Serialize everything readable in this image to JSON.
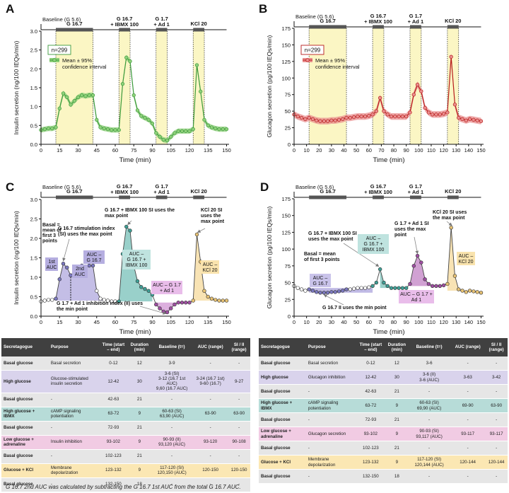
{
  "colors": {
    "insulin": "#3c9a3c",
    "insulin_fill": "#8fd07a",
    "glucagon": "#b71c1c",
    "glucagon_fill": "#e98f8f",
    "stim_band": "#fbf6c4",
    "purple": "#7b78c0",
    "teal": "#3f9f96",
    "magenta": "#a04fa3",
    "gold": "#e7c274"
  },
  "panels": {
    "A": {
      "letter": "A",
      "ylabel": "Insulin secretion (ng/100 IEQs/min)",
      "xlabel": "Time (min)",
      "n_label": "n=299",
      "legend": [
        "Mean ± 95%",
        "confidence interval"
      ]
    },
    "B": {
      "letter": "B",
      "ylabel": "Glucagon secretion (pg/100 IEQs/min)",
      "xlabel": "Time (min)",
      "n_label": "n=299",
      "legend": [
        "Mean ± 95%",
        "confidence interval"
      ]
    },
    "C": {
      "letter": "C",
      "ylabel": "Insulin secretion (ng/100 IEQs/min)",
      "xlabel": "Time (min)"
    },
    "D": {
      "letter": "D",
      "ylabel": "Glucagon secretion (pg/100 IEQs/min)",
      "xlabel": "Time (min)"
    }
  },
  "protocol": {
    "baseline": "Baseline (G 5.6)",
    "g167": "G 16.7",
    "ibmx": [
      "G 16.7",
      "+ IBMX 100"
    ],
    "ad1": [
      "G 1.7",
      "+ Ad 1"
    ],
    "kcl": "KCl 20"
  },
  "annotations_C": {
    "basal": [
      "Basal =",
      "mean of",
      "first 3",
      "points"
    ],
    "si": [
      "G 16.7 stimulation index",
      "(SI) uses the max point"
    ],
    "ibmx_si": [
      "G 16.7 + IBMX 100 SI uses the",
      "max point"
    ],
    "kcl_si": [
      "KCl 20 SI",
      "uses the",
      "max point"
    ],
    "first_auc": [
      "1st",
      "AUC"
    ],
    "second_auc": [
      "2nd",
      "AUC"
    ],
    "auc_g167": [
      "AUC –",
      "G 16.7"
    ],
    "auc_ibmx": [
      "AUC –",
      "G 16.7 +",
      "IBMX 100"
    ],
    "auc_ad1": [
      "AUC – G 1.7",
      "+ Ad 1"
    ],
    "auc_kcl": [
      "AUC –",
      "KCl 20"
    ],
    "ii": [
      "G 1.7 + Ad 1 inhibition index (II) uses",
      "the min point"
    ]
  },
  "annotations_D": {
    "basal": [
      "Basal = mean",
      "of first 3 points"
    ],
    "ibmx_si": [
      "G 16.7 + IBMX 100 SI",
      "uses the max point"
    ],
    "ad1_si": [
      "G 1.7 + Ad 1 SI",
      "uses the max",
      "point"
    ],
    "kcl_si": [
      "KCl 20 SI uses",
      "the max point"
    ],
    "auc_g167": [
      "AUC –",
      "G 16.7"
    ],
    "auc_ibmx": [
      "AUC –",
      "G 16.7 +",
      "IBMX 100"
    ],
    "auc_ad1": [
      "AUC – G 1.7 +",
      "Ad 1"
    ],
    "auc_kcl": [
      "AUC –",
      "KCl 20"
    ],
    "ii": "G 16.7 II uses the min point"
  },
  "chart_data": [
    {
      "panel": "A",
      "type": "line",
      "title": "",
      "xlabel": "Time (min)",
      "ylabel": "Insulin secretion (ng/100 IEQs/min)",
      "xlim": [
        0,
        152
      ],
      "ylim": [
        0,
        3.0
      ],
      "xticks": [
        0,
        15,
        30,
        45,
        60,
        75,
        90,
        105,
        120,
        135,
        150
      ],
      "yticks": [
        0,
        0.5,
        1.0,
        1.5,
        2.0,
        2.5,
        3.0
      ],
      "stim_windows": [
        [
          12,
          42
        ],
        [
          63,
          72
        ],
        [
          93,
          102
        ],
        [
          123,
          132
        ]
      ],
      "series": [
        {
          "name": "Mean ± 95% confidence interval",
          "ci": 0.07,
          "x": [
            0,
            3,
            6,
            9,
            12,
            15,
            18,
            21,
            24,
            27,
            30,
            33,
            36,
            39,
            42,
            45,
            48,
            51,
            54,
            57,
            60,
            63,
            66,
            69,
            72,
            75,
            78,
            81,
            84,
            87,
            90,
            93,
            96,
            99,
            102,
            105,
            108,
            111,
            114,
            117,
            120,
            123,
            126,
            129,
            132,
            135,
            138,
            141,
            144,
            147,
            150
          ],
          "y": [
            0.38,
            0.4,
            0.42,
            0.42,
            0.45,
            0.95,
            1.35,
            1.25,
            1.05,
            1.15,
            1.25,
            1.3,
            1.28,
            1.3,
            1.3,
            0.65,
            0.45,
            0.42,
            0.4,
            0.38,
            0.38,
            0.38,
            1.6,
            2.3,
            2.2,
            1.3,
            0.9,
            0.75,
            0.7,
            0.65,
            0.55,
            0.3,
            0.2,
            0.12,
            0.1,
            0.2,
            0.3,
            0.35,
            0.35,
            0.35,
            0.35,
            0.4,
            2.1,
            1.4,
            0.65,
            0.5,
            0.45,
            0.42,
            0.4,
            0.4,
            0.4
          ]
        }
      ]
    },
    {
      "panel": "B",
      "type": "line",
      "title": "",
      "xlabel": "Time (min)",
      "ylabel": "Glucagon secretion (pg/100 IEQs/min)",
      "xlim": [
        0,
        152
      ],
      "ylim": [
        0,
        175
      ],
      "xticks": [
        0,
        10,
        20,
        30,
        40,
        50,
        60,
        70,
        80,
        90,
        100,
        110,
        120,
        130,
        140,
        150
      ],
      "yticks": [
        0,
        25,
        50,
        75,
        100,
        125,
        150,
        175
      ],
      "stim_windows": [
        [
          12,
          42
        ],
        [
          63,
          72
        ],
        [
          93,
          102
        ],
        [
          123,
          132
        ]
      ],
      "series": [
        {
          "name": "Mean ± 95% confidence interval",
          "ci": 5,
          "x": [
            0,
            3,
            6,
            9,
            12,
            15,
            18,
            21,
            24,
            27,
            30,
            33,
            36,
            39,
            42,
            45,
            48,
            51,
            54,
            57,
            60,
            63,
            66,
            69,
            72,
            75,
            78,
            81,
            84,
            87,
            90,
            93,
            96,
            99,
            102,
            105,
            108,
            111,
            114,
            117,
            120,
            123,
            126,
            129,
            132,
            135,
            138,
            141,
            144,
            147,
            150
          ],
          "y": [
            45,
            42,
            40,
            38,
            40,
            38,
            36,
            35,
            35,
            35,
            36,
            36,
            37,
            38,
            40,
            40,
            41,
            42,
            42,
            42,
            43,
            45,
            50,
            70,
            50,
            45,
            42,
            42,
            42,
            42,
            42,
            48,
            75,
            90,
            80,
            55,
            48,
            45,
            45,
            45,
            46,
            48,
            132,
            60,
            40,
            38,
            36,
            38,
            37,
            36,
            35
          ]
        }
      ]
    },
    {
      "panel": "C",
      "type": "line",
      "title": "",
      "xlabel": "Time (min)",
      "ylabel": "Insulin secretion (ng/100 IEQs/min)",
      "xlim": [
        0,
        152
      ],
      "ylim": [
        0,
        3.0
      ],
      "xticks": [
        0,
        15,
        30,
        45,
        60,
        75,
        90,
        105,
        120,
        135,
        150
      ],
      "yticks": [
        0,
        0.5,
        1.0,
        1.5,
        2.0,
        2.5,
        3.0
      ],
      "series": [
        {
          "name": "Insulin trace",
          "x": [
            0,
            3,
            6,
            9,
            12,
            15,
            18,
            21,
            24,
            27,
            30,
            33,
            36,
            39,
            42,
            45,
            48,
            51,
            54,
            57,
            60,
            63,
            66,
            69,
            72,
            75,
            78,
            81,
            84,
            87,
            90,
            93,
            96,
            99,
            102,
            105,
            108,
            111,
            114,
            117,
            120,
            123,
            126,
            129,
            132,
            135,
            138,
            141,
            144,
            147,
            150
          ],
          "y": [
            0.38,
            0.4,
            0.42,
            0.42,
            0.45,
            0.95,
            1.35,
            1.25,
            1.05,
            1.15,
            1.25,
            1.3,
            1.28,
            1.3,
            1.3,
            0.65,
            0.45,
            0.42,
            0.4,
            0.38,
            0.38,
            0.38,
            1.6,
            2.3,
            2.2,
            1.3,
            0.9,
            0.75,
            0.7,
            0.65,
            0.55,
            0.3,
            0.2,
            0.12,
            0.1,
            0.2,
            0.3,
            0.35,
            0.35,
            0.35,
            0.35,
            0.4,
            2.1,
            1.4,
            0.65,
            0.5,
            0.45,
            0.42,
            0.4,
            0.4,
            0.4
          ]
        }
      ]
    },
    {
      "panel": "D",
      "type": "line",
      "title": "",
      "xlabel": "Time (min)",
      "ylabel": "Glucagon secretion (pg/100 IEQs/min)",
      "xlim": [
        0,
        152
      ],
      "ylim": [
        0,
        175
      ],
      "xticks": [
        0,
        10,
        20,
        30,
        40,
        50,
        60,
        70,
        80,
        90,
        100,
        110,
        120,
        130,
        140,
        150
      ],
      "yticks": [
        0,
        25,
        50,
        75,
        100,
        125,
        150,
        175
      ],
      "series": [
        {
          "name": "Glucagon trace",
          "x": [
            0,
            3,
            6,
            9,
            12,
            15,
            18,
            21,
            24,
            27,
            30,
            33,
            36,
            39,
            42,
            45,
            48,
            51,
            54,
            57,
            60,
            63,
            66,
            69,
            72,
            75,
            78,
            81,
            84,
            87,
            90,
            93,
            96,
            99,
            102,
            105,
            108,
            111,
            114,
            117,
            120,
            123,
            126,
            129,
            132,
            135,
            138,
            141,
            144,
            147,
            150
          ],
          "y": [
            45,
            42,
            40,
            38,
            40,
            38,
            36,
            35,
            35,
            35,
            36,
            36,
            37,
            38,
            40,
            40,
            41,
            42,
            42,
            42,
            43,
            45,
            50,
            70,
            50,
            45,
            42,
            42,
            42,
            42,
            42,
            48,
            75,
            90,
            80,
            55,
            48,
            45,
            45,
            45,
            46,
            48,
            132,
            60,
            40,
            38,
            36,
            38,
            37,
            36,
            35
          ]
        }
      ]
    },
    {
      "panel": "Insulin table",
      "type": "table",
      "columns": [
        "Secretagogue",
        "Purpose",
        "Time (start – end)",
        "Duration (min)",
        "Baseline (t=)",
        "AUC (range)",
        "SI / II (range)"
      ],
      "rows": [
        {
          "kind": "basal",
          "cells": [
            "Basal glucose",
            "Basal secretion",
            "0-12",
            "12",
            "3-9",
            "-",
            "-"
          ]
        },
        {
          "kind": "high",
          "cells": [
            "High glucose",
            "Glucose-stimulated insulin secretion",
            "12-42",
            "30",
            "3-6 (SI)\n3-12 (16.7 1st AUC)\n9,60 (16.7 AUC)",
            "3-24 (16.7 1st)\n9-60 (16.7)",
            "9-27"
          ]
        },
        {
          "kind": "basal",
          "cells": [
            "Basal glucose",
            "-",
            "42-63",
            "21",
            "-",
            "-",
            "-"
          ]
        },
        {
          "kind": "ibmx",
          "cells": [
            "High glucose + IBMX",
            "cAMP signaling potentiation",
            "63-72",
            "9",
            "60-63 (SI)\n63,90 (AUC)",
            "63-90",
            "63-90"
          ]
        },
        {
          "kind": "basal",
          "cells": [
            "Basal glucose",
            "-",
            "72-93",
            "21",
            "-",
            "-",
            "-"
          ]
        },
        {
          "kind": "low",
          "cells": [
            "Low glucose + adrenaline",
            "Insulin inhibition",
            "93-102",
            "9",
            "90-93 (II)\n93,120 (AUC)",
            "93-120",
            "90-108"
          ]
        },
        {
          "kind": "basal",
          "cells": [
            "Basal glucose",
            "-",
            "102-123",
            "21",
            "-",
            "-",
            "-"
          ]
        },
        {
          "kind": "kcl",
          "cells": [
            "Glucose + KCl",
            "Membrane depolarization",
            "123-132",
            "9",
            "117-120 (SI)\n120,150 (AUC)",
            "120-150",
            "120-150"
          ]
        },
        {
          "kind": "basal",
          "cells": [
            "Basal glucose",
            "-",
            "132-150",
            "18",
            "-",
            "-",
            "-"
          ]
        }
      ]
    },
    {
      "panel": "Glucagon table",
      "type": "table",
      "columns": [
        "Secretagogue",
        "Purpose",
        "Time (start – end)",
        "Duration (min)",
        "Baseline (t=)",
        "AUC (range)",
        "SI / II (range)"
      ],
      "rows": [
        {
          "kind": "basal",
          "cells": [
            "Basal glucose",
            "Basal secretion",
            "0-12",
            "12",
            "3-6",
            "-",
            "-"
          ]
        },
        {
          "kind": "high",
          "cells": [
            "High glucose",
            "Glucagon inhibition",
            "12-42",
            "30",
            "3-6 (II)\n3-6 (AUC)",
            "3-63",
            "3-42"
          ]
        },
        {
          "kind": "basal",
          "cells": [
            "Basal glucose",
            "-",
            "42-63",
            "21",
            "-",
            "-",
            "-"
          ]
        },
        {
          "kind": "ibmx",
          "cells": [
            "High glucose + IBMX",
            "cAMP signaling potentiation",
            "63-72",
            "9",
            "60-63 (SI)\n69,90 (AUC)",
            "69-90",
            "63-90"
          ]
        },
        {
          "kind": "basal",
          "cells": [
            "Basal glucose",
            "-",
            "72-93",
            "21",
            "-",
            "-",
            "-"
          ]
        },
        {
          "kind": "low",
          "cells": [
            "Low glucose + adrenaline",
            "Glucagon secretion",
            "93-102",
            "9",
            "90-93 (SI)\n93,117 (AUC)",
            "93-117",
            "93-117"
          ]
        },
        {
          "kind": "basal",
          "cells": [
            "Basal glucose",
            "-",
            "102-123",
            "21",
            "-",
            "-",
            "-"
          ]
        },
        {
          "kind": "kcl",
          "cells": [
            "Glucose + KCl",
            "Membrane depolarization",
            "123-132",
            "9",
            "117-120 (SI)\n120,144 (AUC)",
            "120-144",
            "120-144"
          ]
        },
        {
          "kind": "basal",
          "cells": [
            "Basal glucose",
            "-",
            "132-150",
            "18",
            "-",
            "-",
            "-"
          ]
        }
      ]
    }
  ],
  "footnote": "G 16.7 2nd AUC was calculated by subtracting the G 16.7 1st AUC from the total G 16.7 AUC."
}
